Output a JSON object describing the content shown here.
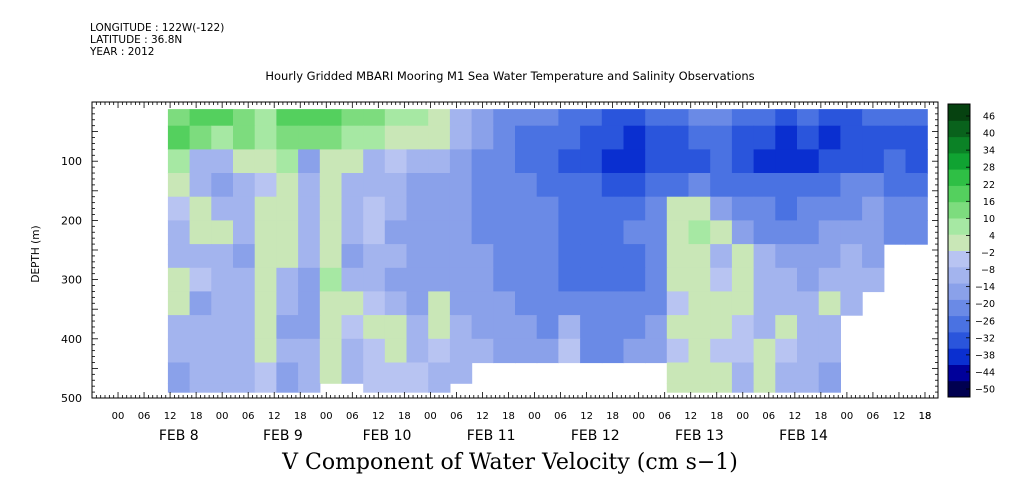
{
  "header": {
    "longitude": "LONGITUDE : 122W(-122)",
    "latitude": "LATITUDE : 36.8N",
    "year": "YEAR : 2012",
    "title": "Hourly Gridded MBARI Mooring M1 Sea Water Temperature and Salinity Observations"
  },
  "caption": "V Component of Water Velocity (cm s−1)",
  "colors": {
    "palette": [
      "#000050",
      "#00009a",
      "#0a2fd0",
      "#2a55dc",
      "#4a72e2",
      "#6a8ae6",
      "#8aa1ea",
      "#a3b4ee",
      "#b8c4f2",
      "#c9e7b7",
      "#a6e8a3",
      "#7ddc7e",
      "#54d05e",
      "#2fbf45",
      "#10a332",
      "#0b8226",
      "#09621c",
      "#064210"
    ],
    "colorbar_labels": [
      "46",
      "40",
      "34",
      "28",
      "22",
      "16",
      "10",
      "4",
      "−2",
      "−8",
      "−14",
      "−20",
      "−26",
      "−32",
      "−38",
      "−44",
      "−50"
    ]
  },
  "chart_data": {
    "type": "heatmap",
    "title": "Hourly Gridded MBARI Mooring M1 Sea Water Temperature and Salinity Observations",
    "subtitle": "V Component of Water Velocity (cm s−1)",
    "xlabel": "",
    "ylabel": "DEPTH (m)",
    "x_range_hours": [
      -30,
      165
    ],
    "x_tick_hour_labels": [
      "00",
      "06",
      "12",
      "18",
      "00",
      "06",
      "12",
      "18",
      "00",
      "06",
      "12",
      "18",
      "00",
      "06",
      "12",
      "18",
      "00",
      "06",
      "12",
      "18",
      "00",
      "06",
      "12",
      "18",
      "00",
      "06",
      "12",
      "18",
      "00",
      "06",
      "12",
      "18",
      "18"
    ],
    "x_day_labels": [
      "FEB  8",
      "FEB  9",
      "FEB 10",
      "FEB 11",
      "FEB 12",
      "FEB 13",
      "FEB 14"
    ],
    "y_range": [
      500,
      0
    ],
    "y_ticks": [
      100,
      200,
      300,
      400,
      500
    ],
    "z_range": [
      -50,
      52
    ],
    "z_step": 6,
    "depth_levels": [
      20,
      60,
      100,
      140,
      180,
      220,
      260,
      300,
      340,
      380,
      420,
      460,
      490
    ],
    "time_hours": [
      -10,
      -5,
      0,
      5,
      10,
      15,
      20,
      25,
      30,
      35,
      40,
      45,
      50,
      55,
      60,
      65,
      70,
      75,
      80,
      85,
      90,
      95,
      100,
      105,
      110,
      115,
      120,
      125,
      130,
      135,
      140,
      145,
      150,
      155,
      160
    ],
    "values": [
      [
        20,
        24,
        22,
        18,
        14,
        26,
        24,
        22,
        20,
        16,
        14,
        10,
        8,
        -4,
        -12,
        -16,
        -18,
        -20,
        -22,
        -24,
        -30,
        -28,
        -26,
        -22,
        -20,
        -18,
        -24,
        -22,
        -28,
        -26,
        -30,
        -28,
        -24,
        -22,
        -26
      ],
      [
        22,
        18,
        14,
        16,
        12,
        18,
        20,
        16,
        12,
        10,
        8,
        6,
        4,
        -6,
        -14,
        -18,
        -22,
        -24,
        -26,
        -28,
        -32,
        -34,
        -30,
        -28,
        -26,
        -24,
        -30,
        -32,
        -34,
        -32,
        -34,
        -32,
        -30,
        -28,
        -30
      ],
      [
        14,
        -4,
        -8,
        4,
        6,
        12,
        -10,
        8,
        6,
        -4,
        -2,
        -6,
        -8,
        -12,
        -16,
        -20,
        -24,
        -26,
        -28,
        -30,
        -34,
        -36,
        -32,
        -30,
        -28,
        -26,
        -32,
        -34,
        -36,
        -34,
        -32,
        -30,
        -28,
        -26,
        -28
      ],
      [
        6,
        -6,
        -10,
        -4,
        2,
        8,
        -8,
        4,
        -6,
        -8,
        -6,
        -10,
        -12,
        -14,
        -16,
        -18,
        -20,
        -22,
        -24,
        -26,
        -28,
        -28,
        -24,
        -22,
        -20,
        -22,
        -24,
        -26,
        -26,
        -24,
        -22,
        -20,
        -18,
        -22,
        -24
      ],
      [
        2,
        4,
        -8,
        -6,
        4,
        6,
        -6,
        6,
        -8,
        2,
        -8,
        -12,
        -10,
        -14,
        -16,
        -18,
        -20,
        -20,
        -22,
        -24,
        -24,
        -22,
        -20,
        4,
        6,
        -12,
        -16,
        -20,
        -22,
        -20,
        -18,
        -16,
        -14,
        -18,
        -20
      ],
      [
        -4,
        6,
        4,
        -8,
        6,
        8,
        -4,
        8,
        -6,
        -2,
        -10,
        -14,
        -12,
        -14,
        -16,
        -18,
        -18,
        -20,
        -22,
        -22,
        -22,
        -20,
        -18,
        8,
        10,
        6,
        -12,
        -16,
        -18,
        -16,
        -14,
        -12,
        -14,
        -16,
        -18
      ],
      [
        -6,
        -4,
        -6,
        -10,
        8,
        4,
        -8,
        6,
        -10,
        -6,
        -8,
        -10,
        -14,
        -12,
        -14,
        -16,
        -18,
        -20,
        -22,
        -24,
        -24,
        -22,
        -20,
        6,
        8,
        -4,
        4,
        -8,
        -10,
        -12,
        -10,
        -8,
        -10,
        null,
        null
      ],
      [
        4,
        2,
        -6,
        -8,
        6,
        -6,
        -10,
        10,
        -8,
        -6,
        -10,
        -12,
        -10,
        -12,
        -14,
        -16,
        -18,
        -20,
        -22,
        -24,
        -24,
        -22,
        -20,
        4,
        6,
        2,
        6,
        -6,
        -8,
        -10,
        -8,
        -6,
        -8,
        null,
        null
      ],
      [
        6,
        -10,
        -8,
        -6,
        8,
        -8,
        -12,
        8,
        4,
        2,
        -8,
        -10,
        6,
        -10,
        -12,
        -14,
        -16,
        -18,
        -20,
        -20,
        -20,
        -18,
        -16,
        2,
        4,
        6,
        4,
        -4,
        -6,
        -8,
        4,
        -8,
        null,
        null,
        null
      ],
      [
        -6,
        -8,
        -6,
        -4,
        6,
        -10,
        -10,
        6,
        2,
        4,
        6,
        -6,
        4,
        -8,
        -10,
        -12,
        -14,
        -16,
        -4,
        -18,
        -18,
        -16,
        -14,
        4,
        6,
        4,
        2,
        -4,
        6,
        -6,
        -6,
        null,
        null,
        null,
        null
      ],
      [
        -8,
        -6,
        -4,
        -6,
        4,
        -8,
        -8,
        4,
        -6,
        2,
        4,
        -4,
        2,
        -6,
        -8,
        -10,
        -12,
        -14,
        2,
        -16,
        -16,
        -14,
        -12,
        2,
        4,
        2,
        -2,
        4,
        2,
        -4,
        -6,
        null,
        null,
        null,
        null
      ],
      [
        -10,
        -8,
        -6,
        -8,
        2,
        -10,
        -6,
        6,
        -4,
        -2,
        2,
        -2,
        -4,
        -6,
        null,
        null,
        null,
        null,
        null,
        null,
        null,
        null,
        null,
        4,
        6,
        4,
        -6,
        4,
        -6,
        -8,
        -10,
        null,
        null,
        null,
        null
      ],
      [
        -10,
        -8,
        -6,
        -8,
        2,
        -10,
        -6,
        null,
        null,
        -2,
        2,
        -2,
        -4,
        null,
        null,
        null,
        null,
        null,
        null,
        null,
        null,
        null,
        null,
        4,
        6,
        4,
        -6,
        4,
        -6,
        -8,
        -10,
        null,
        null,
        null,
        null
      ]
    ]
  }
}
